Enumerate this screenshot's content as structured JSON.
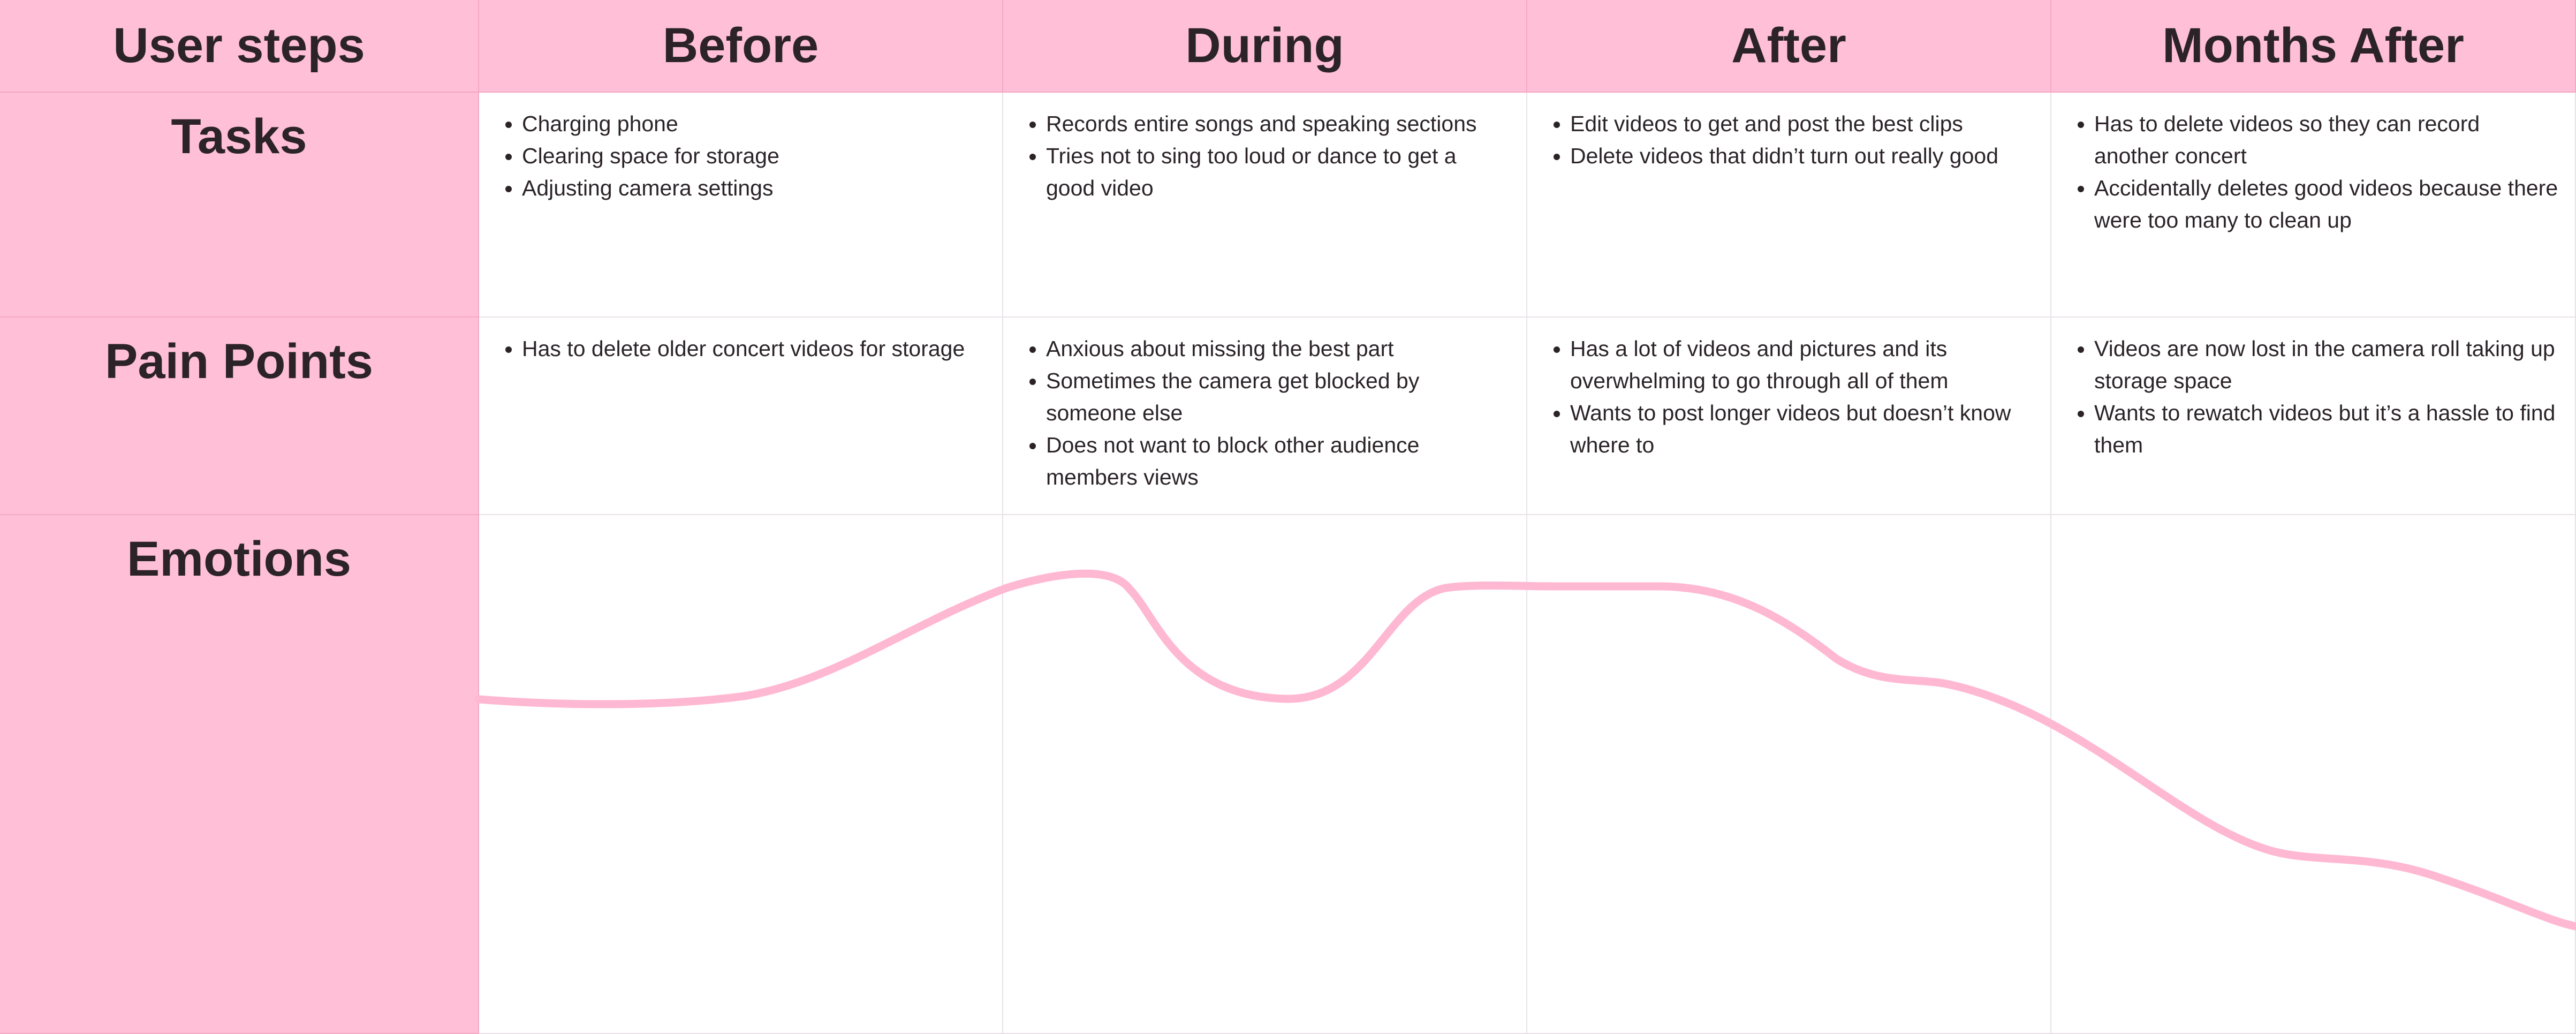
{
  "columns": [
    {
      "label": "User steps"
    },
    {
      "label": "Before"
    },
    {
      "label": "During"
    },
    {
      "label": "After"
    },
    {
      "label": "Months After"
    }
  ],
  "rows": {
    "tasks": {
      "label": "Tasks",
      "cells": [
        [
          "Charging phone",
          "Clearing space for storage",
          "Adjusting camera settings"
        ],
        [
          "Records entire songs and speaking sections",
          "Tries not to sing too loud or dance to get a good video"
        ],
        [
          "Edit videos to get and post the best clips",
          "Delete videos that didn’t turn out really good"
        ],
        [
          "Has to delete videos so they can record another concert",
          "Accidentally deletes good videos because there were too many to clean up"
        ]
      ]
    },
    "pain_points": {
      "label": "Pain Points",
      "cells": [
        [
          "Has to delete older concert videos for storage"
        ],
        [
          "Anxious about missing the best part",
          "Sometimes the camera get blocked by someone else",
          "Does not want to block other audience members views"
        ],
        [
          "Has a lot of videos and pictures and its overwhelming to go through all of them",
          "Wants to post longer videos but doesn’t know where to"
        ],
        [
          "Videos are now lost in the camera roll taking up storage space",
          "Wants to rewatch videos but it’s a hassle to find them"
        ]
      ]
    },
    "emotions": {
      "label": "Emotions"
    }
  },
  "colors": {
    "header_fill": "#ffbfd6",
    "curve": "#ffb8d2",
    "text": "#2b2328"
  }
}
